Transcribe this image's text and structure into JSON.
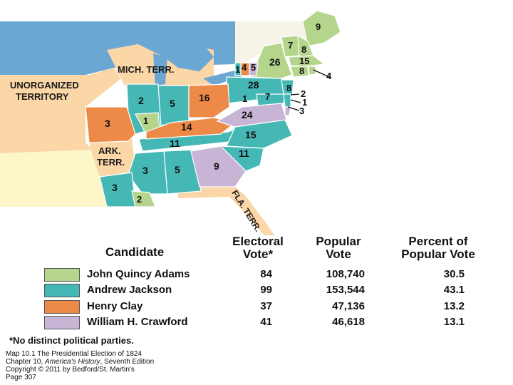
{
  "colors": {
    "adams": "#b5d48c",
    "jackson": "#45b8b6",
    "clay": "#ee8a48",
    "crawford": "#c8b5d6",
    "territory": "#fbd6a6",
    "foreign": "#fdf6c8",
    "water": "#6ba7d3"
  },
  "map_labels": {
    "mich_terr": "MICH. TERR.",
    "unorganized_1": "UNORGANIZED",
    "unorganized_2": "TERRITORY",
    "ark_1": "ARK.",
    "ark_2": "TERR.",
    "fla_terr": "FLA. TERR."
  },
  "states": {
    "maine": "9",
    "vermont": "7",
    "new_hampshire": "8",
    "new_york_a": "26",
    "massachusetts": "15",
    "connecticut": "8",
    "rhode_island": "4",
    "mich_jackson": "1",
    "mich_clay": "4",
    "mich_crawford": "5",
    "pennsylvania": "28",
    "ohio": "16",
    "indiana": "5",
    "illinois": "2",
    "illinois_adams": "1",
    "missouri": "3",
    "kentucky": "14",
    "maryland_adams": "1",
    "nj": "8",
    "delaware_a": "2",
    "delaware_b": "1",
    "maryland": "7",
    "md_crawford": "3",
    "virginia": "24",
    "north_carolina": "15",
    "tennessee": "11",
    "south_carolina": "11",
    "georgia": "9",
    "alabama": "5",
    "mississippi": "3",
    "louisiana": "3",
    "louisiana_adams": "2"
  },
  "table": {
    "header_candidate": "Candidate",
    "header_electoral_1": "Electoral",
    "header_electoral_2": "Vote*",
    "header_popular_1": "Popular",
    "header_popular_2": "Vote",
    "header_percent_1": "Percent of",
    "header_percent_2": "Popular Vote",
    "rows": [
      {
        "candidate": "John Quincy Adams",
        "electoral": "84",
        "popular": "108,740",
        "percent": "30.5",
        "color_key": "adams"
      },
      {
        "candidate": "Andrew Jackson",
        "electoral": "99",
        "popular": "153,544",
        "percent": "43.1",
        "color_key": "jackson"
      },
      {
        "candidate": "Henry Clay",
        "electoral": "37",
        "popular": "47,136",
        "percent": "13.2",
        "color_key": "clay"
      },
      {
        "candidate": "William H. Crawford",
        "electoral": "41",
        "popular": "46,618",
        "percent": "13.1",
        "color_key": "crawford"
      }
    ],
    "note": "*No distinct political parties."
  },
  "caption": {
    "line1": "Map 10.1 The Presidential Election of 1824",
    "line2_pre": "Chapter 10, ",
    "line2_italic": "America's History",
    "line2_post": ", Seventh Edition",
    "line3": "Copyright © 2011 by Bedford/St. Martin's",
    "line4": "Page 307"
  }
}
